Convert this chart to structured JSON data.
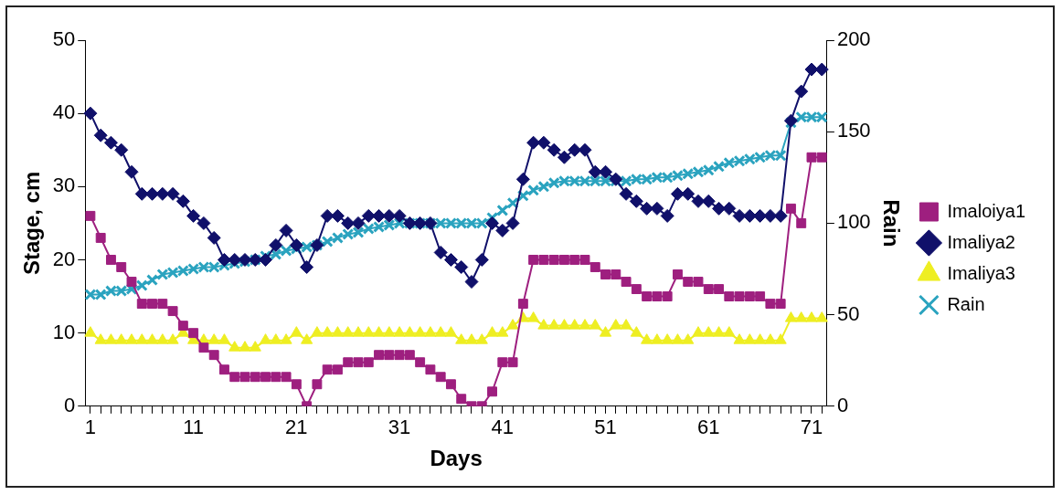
{
  "chart_data": {
    "type": "line",
    "xlabel": "Days",
    "ylabel": "Stage, cm",
    "y2label": "Rain",
    "categories": [
      "1",
      null,
      null,
      null,
      null,
      null,
      null,
      null,
      null,
      null,
      "11",
      null,
      null,
      null,
      null,
      null,
      null,
      null,
      null,
      null,
      "21",
      null,
      null,
      null,
      null,
      null,
      null,
      null,
      null,
      null,
      "31",
      null,
      null,
      null,
      null,
      null,
      null,
      null,
      null,
      null,
      "41",
      null,
      null,
      null,
      null,
      null,
      null,
      null,
      null,
      null,
      "51",
      null,
      null,
      null,
      null,
      null,
      null,
      null,
      null,
      null,
      "61",
      null,
      null,
      null,
      null,
      null,
      null,
      null,
      null,
      null,
      "71",
      null
    ],
    "series": [
      {
        "name": "Imaloiya1",
        "color": "#9e1f7f",
        "marker": "square",
        "values": [
          26,
          23,
          20,
          19,
          17,
          14,
          14,
          14,
          13,
          11,
          10,
          8,
          7,
          5,
          4,
          4,
          4,
          4,
          4,
          4,
          3,
          0,
          3,
          5,
          5,
          6,
          6,
          6,
          7,
          7,
          7,
          7,
          6,
          5,
          4,
          3,
          1,
          0,
          0,
          2,
          6,
          6,
          14,
          20,
          20,
          20,
          20,
          20,
          20,
          19,
          18,
          18,
          17,
          16,
          15,
          15,
          15,
          18,
          17,
          17,
          16,
          16,
          15,
          15,
          15,
          15,
          14,
          14,
          27,
          25,
          34,
          34
        ]
      },
      {
        "name": "Imaliya2",
        "color": "#10106a",
        "marker": "diamond",
        "values": [
          40,
          37,
          36,
          35,
          32,
          29,
          29,
          29,
          29,
          28,
          26,
          25,
          23,
          20,
          20,
          20,
          20,
          20,
          22,
          24,
          22,
          19,
          22,
          26,
          26,
          25,
          25,
          26,
          26,
          26,
          26,
          25,
          25,
          25,
          21,
          20,
          19,
          17,
          20,
          25,
          24,
          25,
          31,
          36,
          36,
          35,
          34,
          35,
          35,
          32,
          32,
          31,
          29,
          28,
          27,
          27,
          26,
          29,
          29,
          28,
          28,
          27,
          27,
          26,
          26,
          26,
          26,
          26,
          39,
          43,
          46,
          46
        ]
      },
      {
        "name": "Imaliya3",
        "color": "#eeee22",
        "marker": "triangle",
        "values": [
          10,
          9,
          9,
          9,
          9,
          9,
          9,
          9,
          9,
          10,
          9,
          9,
          9,
          9,
          8,
          8,
          8,
          9,
          9,
          9,
          10,
          9,
          10,
          10,
          10,
          10,
          10,
          10,
          10,
          10,
          10,
          10,
          10,
          10,
          10,
          10,
          9,
          9,
          9,
          10,
          10,
          11,
          12,
          12,
          11,
          11,
          11,
          11,
          11,
          11,
          10,
          11,
          11,
          10,
          9,
          9,
          9,
          9,
          9,
          10,
          10,
          10,
          10,
          9,
          9,
          9,
          9,
          9,
          12,
          12,
          12,
          12
        ]
      },
      {
        "name": "Rain",
        "color": "#2aa3bf",
        "marker": "cross",
        "axis": "y2",
        "values": [
          61,
          61,
          63,
          63,
          64,
          66,
          69,
          72,
          73,
          74,
          75,
          76,
          76,
          77,
          78,
          79,
          80,
          82,
          83,
          85,
          86,
          87,
          88,
          90,
          92,
          94,
          95,
          97,
          98,
          99,
          100,
          100,
          100,
          100,
          100,
          100,
          100,
          100,
          100,
          103,
          107,
          111,
          115,
          118,
          120,
          122,
          123,
          123,
          123,
          123,
          123,
          123,
          123,
          124,
          124,
          125,
          125,
          126,
          127,
          128,
          129,
          131,
          133,
          134,
          135,
          136,
          137,
          137,
          155,
          158,
          158,
          158
        ]
      }
    ],
    "ylim": [
      0,
      50
    ],
    "yticks": [
      0,
      10,
      20,
      30,
      40,
      50
    ],
    "y2lim": [
      0,
      200
    ],
    "y2ticks": [
      0,
      50,
      100,
      150,
      200
    ],
    "grid": false,
    "legend": "right",
    "line_style": "solid"
  }
}
